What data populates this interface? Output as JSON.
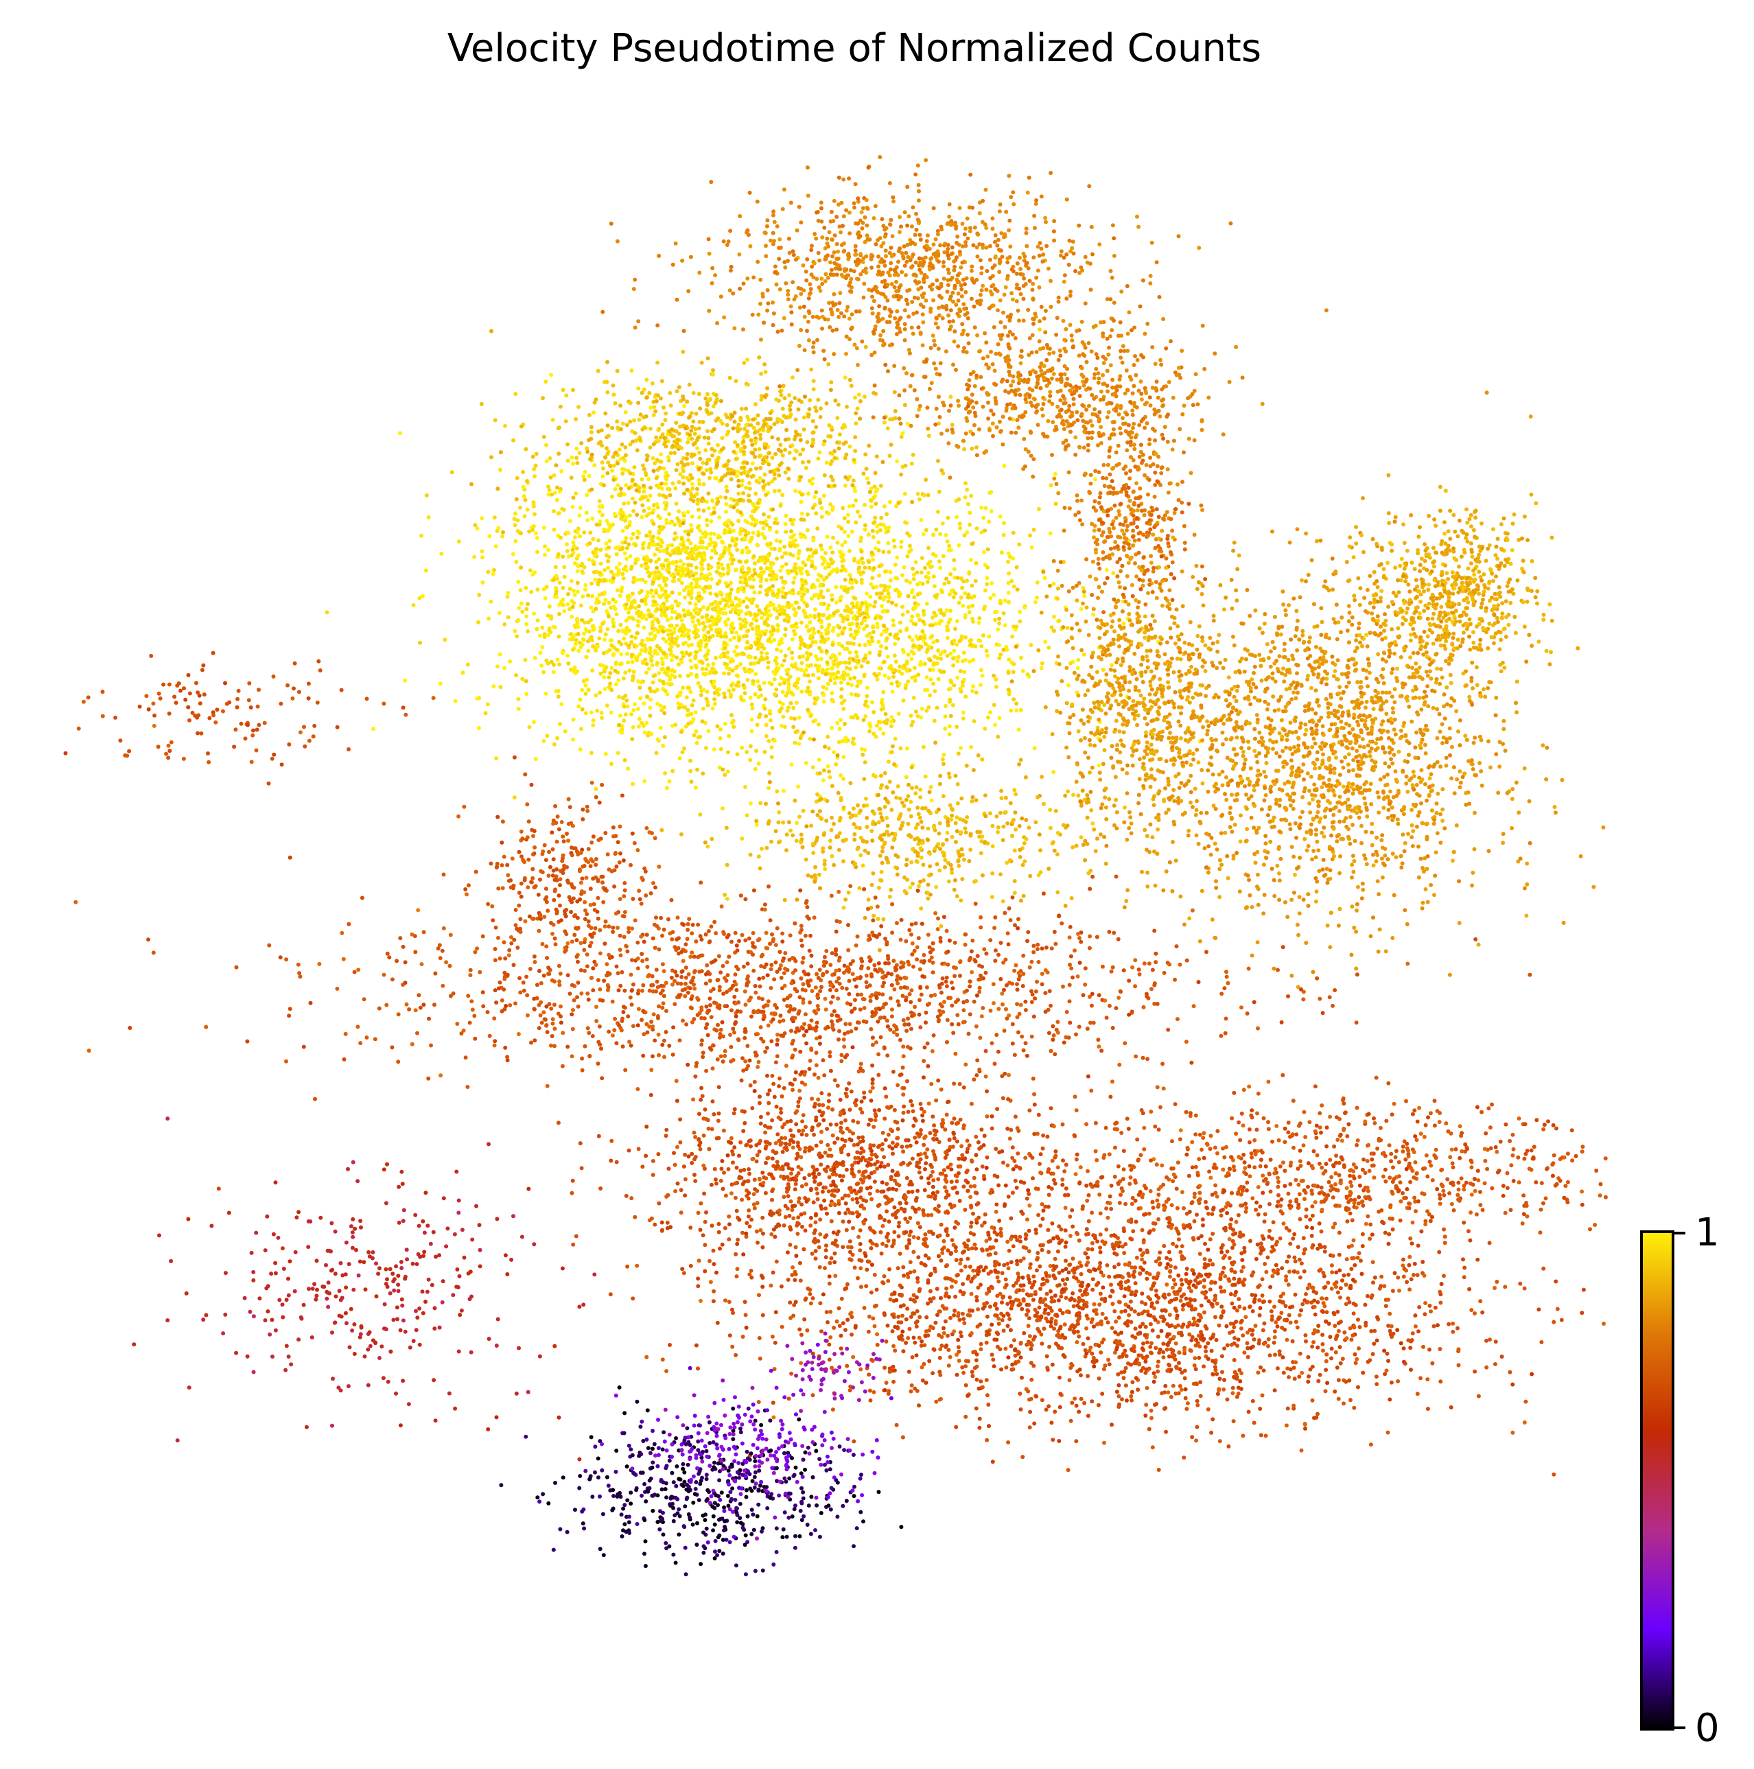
{
  "chart_data": {
    "type": "scatter",
    "title": "Velocity Pseudotime of Normalized Counts",
    "xlabel": "",
    "ylabel": "",
    "axes_visible": false,
    "colormap": [
      "#000000",
      "#7a00ff",
      "#c2287a",
      "#c42a02",
      "#e0660a",
      "#eaa406",
      "#fff00a"
    ],
    "colorbar": {
      "min": 0,
      "max": 1,
      "tick_labels": [
        "1",
        "0"
      ],
      "placement": "bottom-right"
    },
    "clusters": [
      {
        "x": 0.48,
        "y": 0.69,
        "sx": 0.18,
        "sy": 0.1,
        "value": 0.97,
        "n": 2400
      },
      {
        "x": 0.39,
        "y": 0.72,
        "sx": 0.11,
        "sy": 0.1,
        "value": 0.98,
        "n": 1200
      },
      {
        "x": 0.43,
        "y": 0.81,
        "sx": 0.14,
        "sy": 0.05,
        "value": 0.9,
        "n": 700
      },
      {
        "x": 0.55,
        "y": 0.55,
        "sx": 0.12,
        "sy": 0.05,
        "value": 0.88,
        "n": 500
      },
      {
        "x": 0.55,
        "y": 0.92,
        "sx": 0.14,
        "sy": 0.06,
        "value": 0.75,
        "n": 1000
      },
      {
        "x": 0.65,
        "y": 0.84,
        "sx": 0.1,
        "sy": 0.05,
        "value": 0.75,
        "n": 600
      },
      {
        "x": 0.69,
        "y": 0.77,
        "sx": 0.04,
        "sy": 0.08,
        "value": 0.75,
        "n": 250
      },
      {
        "x": 0.7,
        "y": 0.64,
        "sx": 0.06,
        "sy": 0.1,
        "value": 0.82,
        "n": 700
      },
      {
        "x": 0.82,
        "y": 0.61,
        "sx": 0.12,
        "sy": 0.12,
        "value": 0.8,
        "n": 1800
      },
      {
        "x": 0.9,
        "y": 0.71,
        "sx": 0.06,
        "sy": 0.06,
        "value": 0.85,
        "n": 600
      },
      {
        "x": 0.47,
        "y": 0.45,
        "sx": 0.3,
        "sy": 0.06,
        "value": 0.62,
        "n": 1500
      },
      {
        "x": 0.33,
        "y": 0.52,
        "sx": 0.06,
        "sy": 0.06,
        "value": 0.62,
        "n": 300
      },
      {
        "x": 0.51,
        "y": 0.33,
        "sx": 0.14,
        "sy": 0.08,
        "value": 0.6,
        "n": 1200
      },
      {
        "x": 0.69,
        "y": 0.24,
        "sx": 0.24,
        "sy": 0.08,
        "value": 0.6,
        "n": 2200
      },
      {
        "x": 0.82,
        "y": 0.33,
        "sx": 0.22,
        "sy": 0.05,
        "value": 0.62,
        "n": 800
      },
      {
        "x": 0.7,
        "y": 0.75,
        "sx": 0.04,
        "sy": 0.05,
        "value": 0.68,
        "n": 120
      },
      {
        "x": 0.11,
        "y": 0.63,
        "sx": 0.1,
        "sy": 0.04,
        "value": 0.6,
        "n": 120
      },
      {
        "x": 0.2,
        "y": 0.25,
        "sx": 0.12,
        "sy": 0.08,
        "value": 0.45,
        "n": 300
      },
      {
        "x": 0.42,
        "y": 0.12,
        "sx": 0.1,
        "sy": 0.05,
        "value": 0.05,
        "n": 500
      },
      {
        "x": 0.45,
        "y": 0.15,
        "sx": 0.08,
        "sy": 0.04,
        "value": 0.2,
        "n": 200
      },
      {
        "x": 0.5,
        "y": 0.2,
        "sx": 0.04,
        "sy": 0.02,
        "value": 0.25,
        "n": 60
      }
    ]
  }
}
